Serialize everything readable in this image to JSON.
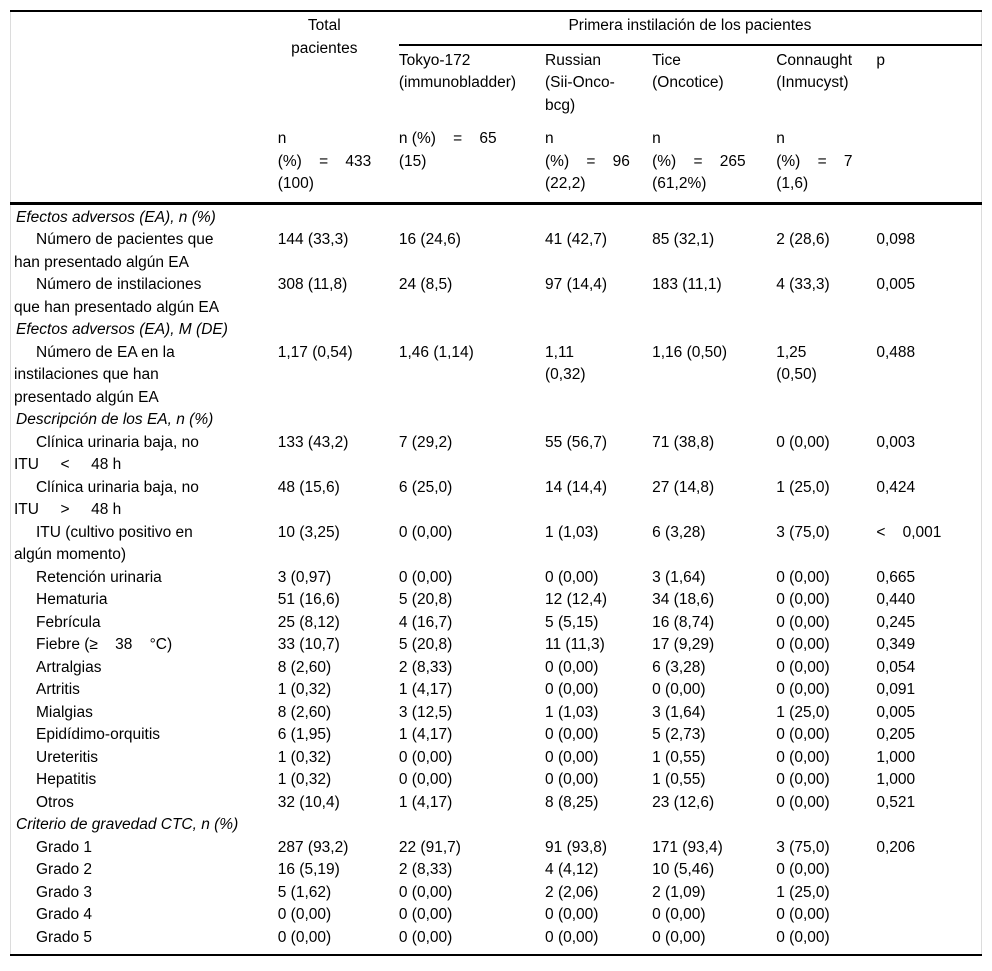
{
  "page": {
    "background": "#ffffff",
    "text_color": "#000000",
    "rule_color": "#000000",
    "edge_color": "#dcdcdc"
  },
  "table": {
    "header": {
      "total_label": "Total\npacientes",
      "group_label": "Primera instilación de los pacientes",
      "strain_columns": [
        "Tokyo-172\n(immunobladder)",
        "Russian\n(Sii-Onco-\nbcg)",
        "Tice\n(Oncotice)",
        "Connaught\n(Inmucyst)"
      ],
      "p_label": "p",
      "counts": {
        "total": "n\n(%)    =    433\n(100)",
        "tokyo": "n (%)    =    65\n(15)",
        "russian": "n\n(%)    =    96\n(22,2)",
        "tice": "n\n(%)    =    265\n(61,2%)",
        "connaught": "n\n(%)    =    7\n(1,6)"
      }
    },
    "rows": [
      {
        "section": true,
        "label": "Efectos adversos (EA), n (%)"
      },
      {
        "label": "Número de pacientes que\nhan presentado algún EA",
        "values": [
          "144 (33,3)",
          "16 (24,6)",
          "41 (42,7)",
          "85 (32,1)",
          "2 (28,6)",
          "0,098"
        ]
      },
      {
        "label": "Número de instilaciones\nque han presentado algún EA",
        "values": [
          "308 (11,8)",
          "24 (8,5)",
          "97 (14,4)",
          "183 (11,1)",
          "4 (33,3)",
          "0,005"
        ]
      },
      {
        "section": true,
        "label": "Efectos adversos (EA), M (DE)"
      },
      {
        "label": "Número de EA en la\ninstilaciones que han\npresentado algún EA",
        "values": [
          "1,17 (0,54)",
          "1,46 (1,14)",
          "1,11\n(0,32)",
          "1,16 (0,50)",
          "1,25\n(0,50)",
          "0,488"
        ]
      },
      {
        "section": true,
        "label": "Descripción de los EA, n (%)"
      },
      {
        "label": "Clínica urinaria baja, no\nITU     <     48 h",
        "values": [
          "133 (43,2)",
          "7 (29,2)",
          "55 (56,7)",
          "71 (38,8)",
          "0 (0,00)",
          "0,003"
        ]
      },
      {
        "label": "Clínica urinaria baja, no\nITU     >     48 h",
        "values": [
          "48 (15,6)",
          "6 (25,0)",
          "14 (14,4)",
          "27 (14,8)",
          "1 (25,0)",
          "0,424"
        ]
      },
      {
        "label": "ITU (cultivo positivo en\nalgún momento)",
        "values": [
          "10 (3,25)",
          "0 (0,00)",
          "1 (1,03)",
          "6 (3,28)",
          "3 (75,0)",
          "<    0,001"
        ]
      },
      {
        "label": "Retención urinaria",
        "values": [
          "3 (0,97)",
          "0 (0,00)",
          "0 (0,00)",
          "3 (1,64)",
          "0 (0,00)",
          "0,665"
        ]
      },
      {
        "label": "Hematuria",
        "values": [
          "51 (16,6)",
          "5 (20,8)",
          "12 (12,4)",
          "34 (18,6)",
          "0 (0,00)",
          "0,440"
        ]
      },
      {
        "label": "Febrícula",
        "values": [
          "25 (8,12)",
          "4 (16,7)",
          "5 (5,15)",
          "16 (8,74)",
          "0 (0,00)",
          "0,245"
        ]
      },
      {
        "label": "Fiebre (≥    38    °C)",
        "values": [
          "33 (10,7)",
          "5 (20,8)",
          "11 (11,3)",
          "17 (9,29)",
          "0 (0,00)",
          "0,349"
        ]
      },
      {
        "label": "Artralgias",
        "values": [
          "8 (2,60)",
          "2 (8,33)",
          "0 (0,00)",
          "6 (3,28)",
          "0 (0,00)",
          "0,054"
        ]
      },
      {
        "label": "Artritis",
        "values": [
          "1 (0,32)",
          "1 (4,17)",
          "0 (0,00)",
          "0 (0,00)",
          "0 (0,00)",
          "0,091"
        ]
      },
      {
        "label": "Mialgias",
        "values": [
          "8 (2,60)",
          "3 (12,5)",
          "1 (1,03)",
          "3 (1,64)",
          "1 (25,0)",
          "0,005"
        ]
      },
      {
        "label": "Epidídimo-orquitis",
        "values": [
          "6 (1,95)",
          "1 (4,17)",
          "0 (0,00)",
          "5 (2,73)",
          "0 (0,00)",
          "0,205"
        ]
      },
      {
        "label": "Ureteritis",
        "values": [
          "1 (0,32)",
          "0 (0,00)",
          "0 (0,00)",
          "1 (0,55)",
          "0 (0,00)",
          "1,000"
        ]
      },
      {
        "label": "Hepatitis",
        "values": [
          "1 (0,32)",
          "0 (0,00)",
          "0 (0,00)",
          "1 (0,55)",
          "0 (0,00)",
          "1,000"
        ]
      },
      {
        "label": "Otros",
        "values": [
          "32 (10,4)",
          "1 (4,17)",
          "8 (8,25)",
          "23 (12,6)",
          "0 (0,00)",
          "0,521"
        ]
      },
      {
        "section": true,
        "label": "Criterio de gravedad CTC, n (%)"
      },
      {
        "label": "Grado 1",
        "values": [
          "287 (93,2)",
          "22 (91,7)",
          "91 (93,8)",
          "171 (93,4)",
          "3 (75,0)",
          "0,206"
        ]
      },
      {
        "label": "Grado 2",
        "values": [
          "16 (5,19)",
          "2 (8,33)",
          "4 (4,12)",
          "10 (5,46)",
          "0 (0,00)",
          ""
        ]
      },
      {
        "label": "Grado 3",
        "values": [
          "5 (1,62)",
          "0 (0,00)",
          "2 (2,06)",
          "2 (1,09)",
          "1 (25,0)",
          ""
        ]
      },
      {
        "label": "Grado 4",
        "values": [
          "0 (0,00)",
          "0 (0,00)",
          "0 (0,00)",
          "0 (0,00)",
          "0 (0,00)",
          ""
        ]
      },
      {
        "label": "Grado 5",
        "values": [
          "0 (0,00)",
          "0 (0,00)",
          "0 (0,00)",
          "0 (0,00)",
          "0 (0,00)",
          ""
        ]
      }
    ]
  }
}
